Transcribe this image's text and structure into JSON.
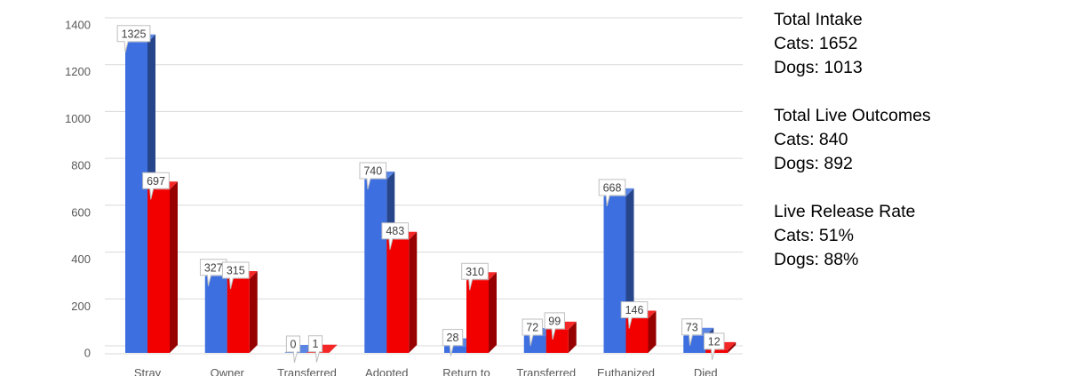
{
  "chart_data": {
    "type": "bar",
    "categories": [
      "Stray",
      "Owner",
      "Transferred",
      "Adopted",
      "Return to",
      "Transferred",
      "Euthanized",
      "Died"
    ],
    "series": [
      {
        "values": [
          1325,
          327,
          0,
          740,
          28,
          72,
          668,
          73
        ],
        "color": "#3d6fe0"
      },
      {
        "values": [
          697,
          315,
          1,
          483,
          310,
          99,
          146,
          12
        ],
        "color": "#f20000"
      }
    ],
    "ylim": [
      0,
      1400
    ],
    "yticks": [
      0,
      200,
      400,
      600,
      800,
      1000,
      1200,
      1400
    ],
    "grid": true,
    "data_labels": true,
    "legend": "none"
  },
  "stats": [
    {
      "heading": "Total Intake",
      "lines": [
        "Cats: 1652",
        "Dogs: 1013"
      ]
    },
    {
      "heading": "Total Live Outcomes",
      "lines": [
        "Cats: 840",
        "Dogs: 892"
      ]
    },
    {
      "heading": "Live Release Rate",
      "lines": [
        "Cats: 51%",
        "Dogs: 88%"
      ]
    }
  ]
}
